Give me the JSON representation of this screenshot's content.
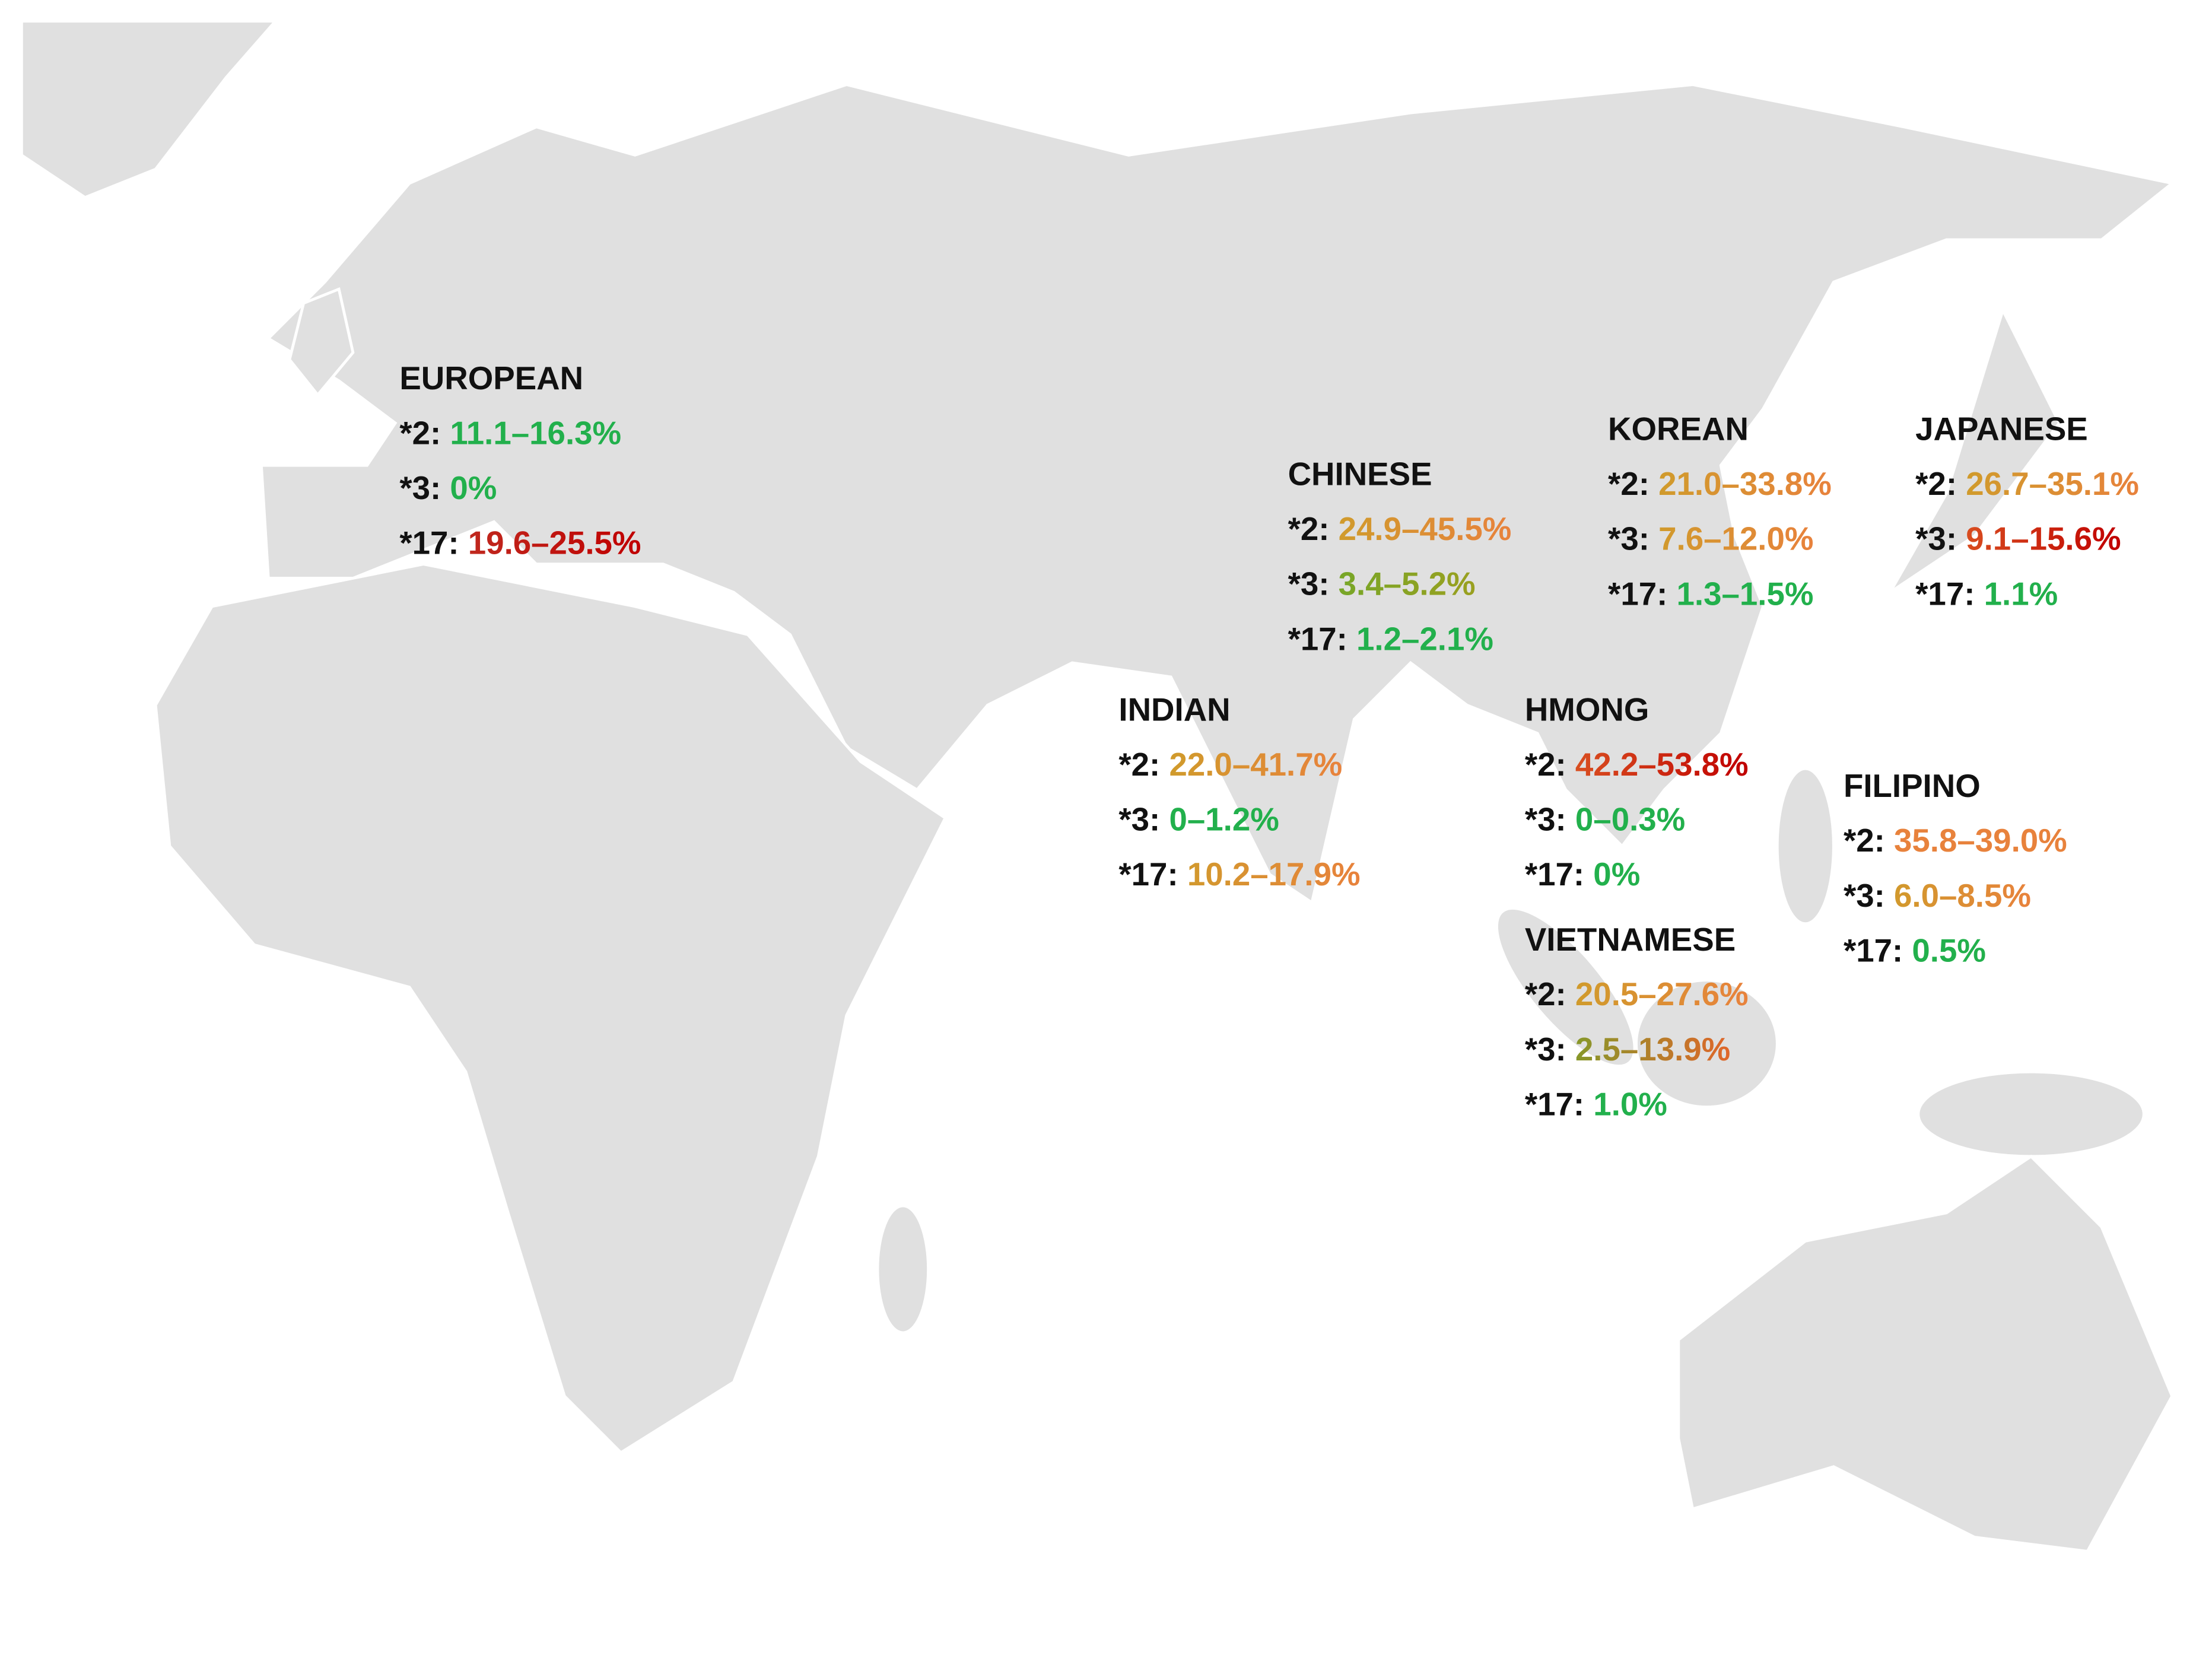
{
  "groups": [
    {
      "name": "EUROPEAN",
      "rows": [
        {
          "allele": "*2:",
          "range": "11.1–16.3%",
          "colors": [
            "#22b04c",
            "#22b04c"
          ]
        },
        {
          "allele": "*3:",
          "range": "0%",
          "colors": [
            "#22b04c",
            "#22b04c"
          ]
        },
        {
          "allele": "*17:",
          "range": "19.6–25.5%",
          "colors": [
            "#c0392b",
            "#c00000"
          ]
        }
      ]
    },
    {
      "name": "CHINESE",
      "rows": [
        {
          "allele": "*2:",
          "range": "24.9–45.5%",
          "colors": [
            "#c9a227",
            "#e8823c"
          ]
        },
        {
          "allele": "*3:",
          "range": "3.4–5.2%",
          "colors": [
            "#6aa82a",
            "#9aa020"
          ]
        },
        {
          "allele": "*17:",
          "range": "1.2–2.1%",
          "colors": [
            "#22b04c",
            "#22b04c"
          ]
        }
      ]
    },
    {
      "name": "KOREAN",
      "rows": [
        {
          "allele": "*2:",
          "range": "21.0–33.8%",
          "colors": [
            "#c9a227",
            "#e8823c"
          ]
        },
        {
          "allele": "*3:",
          "range": "7.6–12.0%",
          "colors": [
            "#c9a227",
            "#e8823c"
          ]
        },
        {
          "allele": "*17:",
          "range": "1.3–1.5%",
          "colors": [
            "#22b04c",
            "#22b04c"
          ]
        }
      ]
    },
    {
      "name": "JAPANESE",
      "rows": [
        {
          "allele": "*2:",
          "range": "26.7–35.1%",
          "colors": [
            "#c9a227",
            "#e8823c"
          ]
        },
        {
          "allele": "*3:",
          "range": "9.1–15.6%",
          "colors": [
            "#e0662a",
            "#c00000"
          ]
        },
        {
          "allele": "*17:",
          "range": "1.1%",
          "colors": [
            "#22b04c",
            "#22b04c"
          ]
        }
      ]
    },
    {
      "name": "INDIAN",
      "rows": [
        {
          "allele": "*2:",
          "range": "22.0–41.7%",
          "colors": [
            "#c9a227",
            "#e8823c"
          ]
        },
        {
          "allele": "*3:",
          "range": "0–1.2%",
          "colors": [
            "#22b04c",
            "#22b04c"
          ]
        },
        {
          "allele": "*17:",
          "range": "10.2–17.9%",
          "colors": [
            "#c9a227",
            "#e8823c"
          ]
        }
      ]
    },
    {
      "name": "HMONG",
      "rows": [
        {
          "allele": "*2:",
          "range": "42.2–53.8%",
          "colors": [
            "#e0662a",
            "#c00000"
          ]
        },
        {
          "allele": "*3:",
          "range": "0–0.3%",
          "colors": [
            "#22b04c",
            "#22b04c"
          ]
        },
        {
          "allele": "*17:",
          "range": "0%",
          "colors": [
            "#22b04c",
            "#22b04c"
          ]
        }
      ]
    },
    {
      "name": "FILIPINO",
      "rows": [
        {
          "allele": "*2:",
          "range": "35.8–39.0%",
          "colors": [
            "#e8823c",
            "#e8823c"
          ]
        },
        {
          "allele": "*3:",
          "range": "6.0–8.5%",
          "colors": [
            "#c9a227",
            "#e8823c"
          ]
        },
        {
          "allele": "*17:",
          "range": "0.5%",
          "colors": [
            "#22b04c",
            "#22b04c"
          ]
        }
      ]
    },
    {
      "name": "VIETNAMESE",
      "rows": [
        {
          "allele": "*2:",
          "range": "20.5–27.6%",
          "colors": [
            "#c9a227",
            "#e8823c"
          ]
        },
        {
          "allele": "*3:",
          "range": "2.5–13.9%",
          "colors": [
            "#6aa82a",
            "#e0662a"
          ]
        },
        {
          "allele": "*17:",
          "range": "1.0%",
          "colors": [
            "#22b04c",
            "#22b04c"
          ]
        }
      ]
    }
  ]
}
